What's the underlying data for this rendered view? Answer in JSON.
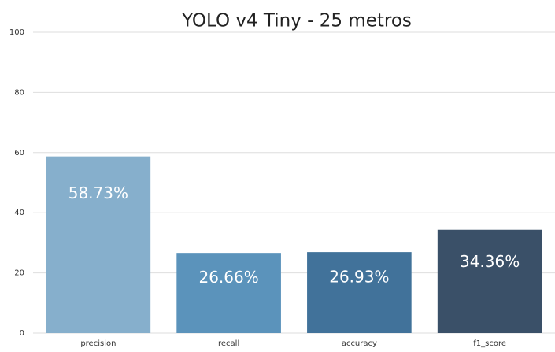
{
  "chart_data": {
    "type": "bar",
    "title": "YOLO v4 Tiny - 25 metros",
    "categories": [
      "precision",
      "recall",
      "accuracy",
      "f1_score"
    ],
    "values": [
      58.73,
      26.66,
      26.93,
      34.36
    ],
    "value_labels": [
      "58.73%",
      "26.66%",
      "26.93%",
      "34.36%"
    ],
    "colors": [
      "#86afcc",
      "#5b93bb",
      "#41729a",
      "#3a5068"
    ],
    "ylim": [
      0,
      100
    ],
    "yticks": [
      0,
      20,
      40,
      60,
      80,
      100
    ],
    "grid": true
  }
}
